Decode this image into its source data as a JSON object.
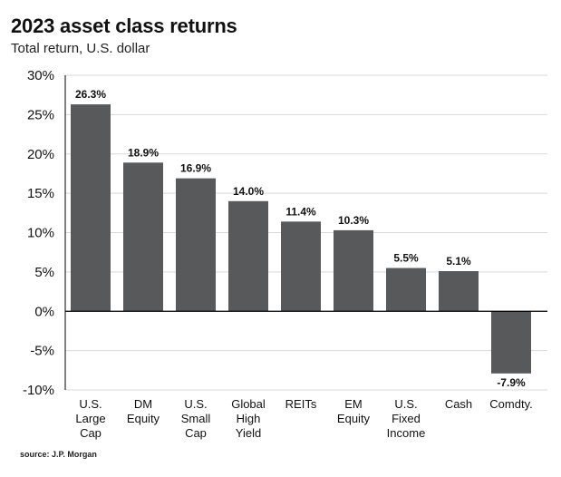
{
  "chart_data": {
    "type": "bar",
    "title": "2023 asset class returns",
    "subtitle": "Total return, U.S. dollar",
    "source": "source: J.P. Morgan",
    "categories": [
      [
        "U.S.",
        "Large",
        "Cap"
      ],
      [
        "DM",
        "Equity"
      ],
      [
        "U.S.",
        "Small",
        "Cap"
      ],
      [
        "Global",
        "High",
        "Yield"
      ],
      [
        "REITs"
      ],
      [
        "EM",
        "Equity"
      ],
      [
        "U.S.",
        "Fixed",
        "Income"
      ],
      [
        "Cash"
      ],
      [
        "Comdty."
      ]
    ],
    "values": [
      26.3,
      18.9,
      16.9,
      14.0,
      11.4,
      10.3,
      5.5,
      5.1,
      -7.9
    ],
    "data_labels": [
      "26.3%",
      "18.9%",
      "16.9%",
      "14.0%",
      "11.4%",
      "10.3%",
      "5.5%",
      "5.1%",
      "-7.9%"
    ],
    "ylim": [
      -10,
      30
    ],
    "yticks": [
      30,
      25,
      20,
      15,
      10,
      5,
      0,
      -5,
      -10
    ],
    "ytick_labels": [
      "30%",
      "25%",
      "20%",
      "15%",
      "10%",
      "5%",
      "0%",
      "-5%",
      "-10%"
    ],
    "grid": true,
    "colors": {
      "bar": "#58595b",
      "grid": "#d9d9d9",
      "axis": "#000000"
    }
  }
}
